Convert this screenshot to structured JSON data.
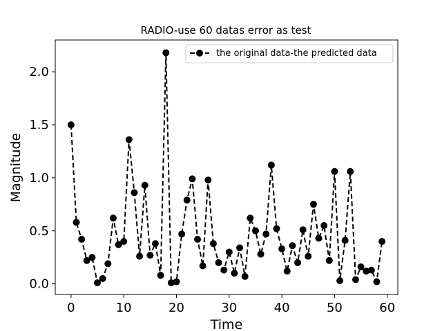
{
  "chart_data": {
    "type": "line",
    "title": "RADIO-use 60 datas error as test",
    "xlabel": "Time",
    "ylabel": "Magnitude",
    "xlim": [
      -3,
      62
    ],
    "ylim": [
      -0.1,
      2.3
    ],
    "xticks": [
      0,
      10,
      20,
      30,
      40,
      50,
      60
    ],
    "yticks": [
      0.0,
      0.5,
      1.0,
      1.5,
      2.0
    ],
    "ytick_labels": [
      "0.0",
      "0.5",
      "1.0",
      "1.5",
      "2.0"
    ],
    "grid": false,
    "legend_position": "top-right",
    "series": [
      {
        "name": "the original data-the predicted data",
        "color": "#000000",
        "line_style": "dashed",
        "marker": "circle",
        "x": [
          0,
          1,
          2,
          3,
          4,
          5,
          6,
          7,
          8,
          9,
          10,
          11,
          12,
          13,
          14,
          15,
          16,
          17,
          18,
          19,
          20,
          21,
          22,
          23,
          24,
          25,
          26,
          27,
          28,
          29,
          30,
          31,
          32,
          33,
          34,
          35,
          36,
          37,
          38,
          39,
          40,
          41,
          42,
          43,
          44,
          45,
          46,
          47,
          48,
          49,
          50,
          51,
          52,
          53,
          54,
          55,
          56,
          57,
          58,
          59
        ],
        "values": [
          1.5,
          0.58,
          0.42,
          0.22,
          0.25,
          0.01,
          0.05,
          0.19,
          0.62,
          0.37,
          0.4,
          1.36,
          0.86,
          0.26,
          0.93,
          0.27,
          0.38,
          0.08,
          2.18,
          0.01,
          0.02,
          0.47,
          0.79,
          0.99,
          0.42,
          0.17,
          0.98,
          0.38,
          0.2,
          0.13,
          0.3,
          0.1,
          0.34,
          0.07,
          0.62,
          0.5,
          0.28,
          0.47,
          1.12,
          0.52,
          0.33,
          0.12,
          0.36,
          0.2,
          0.51,
          0.26,
          0.75,
          0.43,
          0.55,
          0.22,
          1.06,
          0.03,
          0.41,
          1.06,
          0.04,
          0.16,
          0.12,
          0.13,
          0.02,
          0.4
        ]
      }
    ]
  }
}
